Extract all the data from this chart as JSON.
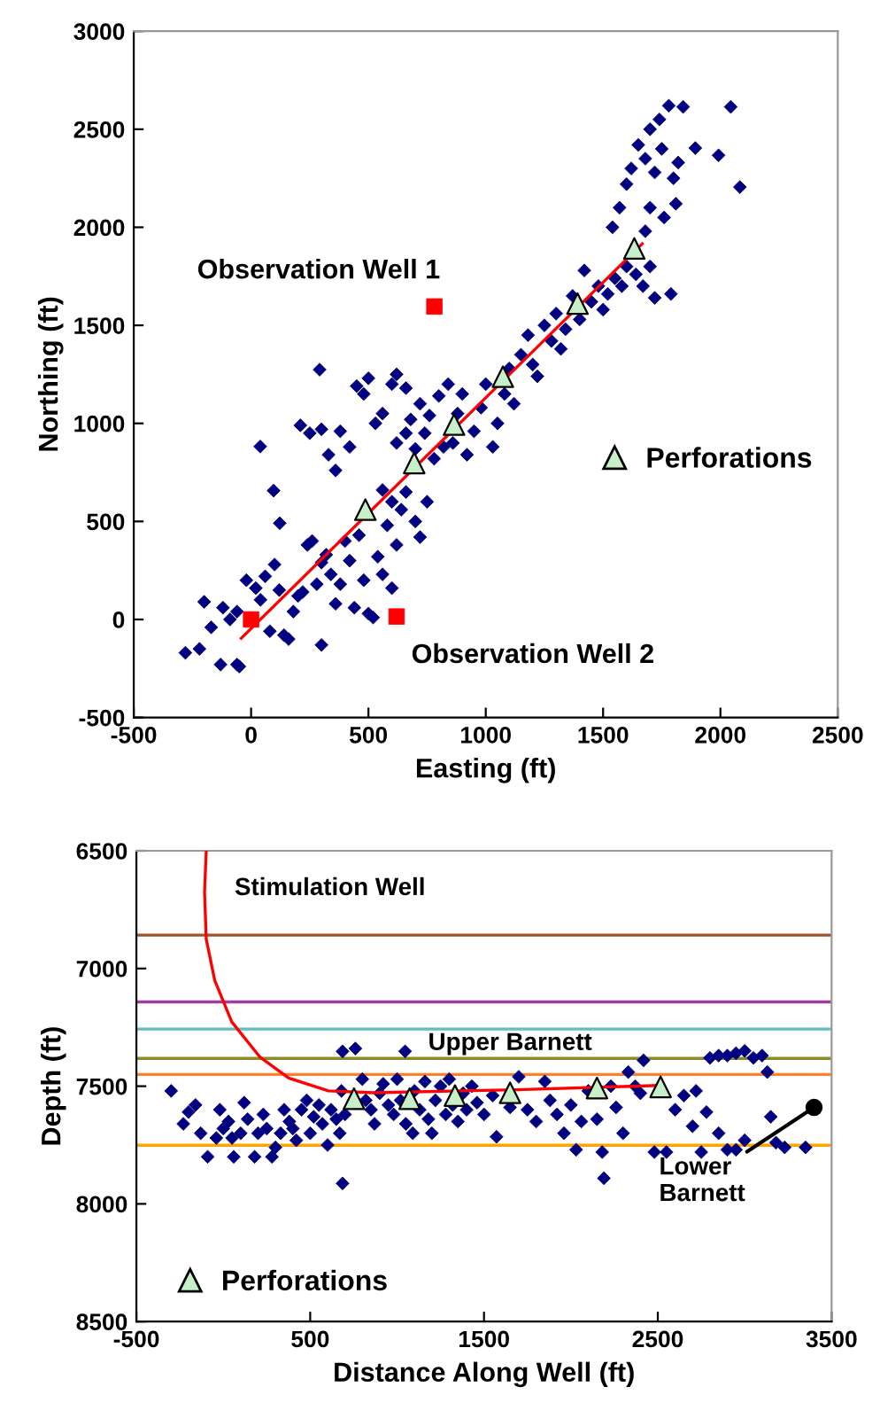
{
  "chart_data": [
    {
      "type": "scatter",
      "xlabel": "Easting (ft)",
      "ylabel": "Northing (ft)",
      "xlim": [
        -500,
        2500
      ],
      "ylim": [
        -500,
        3000
      ],
      "xticks": [
        -500,
        0,
        500,
        1000,
        1500,
        2000,
        2500
      ],
      "yticks": [
        -500,
        0,
        500,
        1000,
        1500,
        2000,
        2500,
        3000
      ],
      "grid": false,
      "legend": "right",
      "annotations": [
        "Observation Well 1",
        {
          "text": "Observation Well 2",
          "x": 620,
          "y": 15
        }
      ],
      "series": [
        {
          "type": "scatter",
          "marker": "diamond",
          "color": "#000080",
          "x": [
            -280,
            -220,
            -130,
            -60,
            -50,
            -200,
            -170,
            -120,
            -90,
            -60,
            -20,
            20,
            40,
            60,
            80,
            100,
            120,
            140,
            160,
            180,
            200,
            220,
            240,
            260,
            280,
            300,
            320,
            340,
            360,
            300,
            380,
            400,
            420,
            440,
            460,
            480,
            500,
            520,
            540,
            560,
            580,
            600,
            620,
            640,
            660,
            700,
            720,
            750,
            560,
            600,
            39,
            96,
            122,
            292,
            210,
            250,
            300,
            330,
            360,
            380,
            420,
            450,
            480,
            500,
            530,
            560,
            600,
            620,
            660,
            620,
            660,
            680,
            700,
            720,
            740,
            760,
            780,
            800,
            820,
            840,
            860,
            880,
            900,
            920,
            950,
            980,
            1000,
            1030,
            1050,
            1080,
            1100,
            1120,
            1150,
            1180,
            1200,
            1220,
            1250,
            1280,
            1300,
            1320,
            1340,
            1370,
            1400,
            1420,
            1450,
            1480,
            1500,
            1520,
            1550,
            1580,
            1600,
            1640,
            1670,
            1700,
            1720,
            1540,
            1570,
            1600,
            1620,
            1650,
            1680,
            1700,
            1720,
            1740,
            1750,
            1780,
            1800,
            1810,
            1760,
            1700,
            1680,
            1820,
            1841,
            1893,
            1992,
            2044,
            2083,
            1789
          ],
          "values": [
            -170,
            -150,
            -230,
            -230,
            -240,
            90,
            -40,
            60,
            0,
            40,
            200,
            160,
            100,
            220,
            -60,
            280,
            150,
            -80,
            -100,
            40,
            120,
            140,
            380,
            400,
            180,
            290,
            330,
            230,
            80,
            -130,
            180,
            400,
            300,
            60,
            430,
            200,
            30,
            10,
            320,
            230,
            480,
            160,
            380,
            560,
            650,
            500,
            420,
            600,
            660,
            600,
            882,
            657,
            491,
            1274,
            990,
            950,
            970,
            840,
            760,
            960,
            880,
            1190,
            1150,
            1230,
            1000,
            1050,
            1200,
            1250,
            1180,
            900,
            950,
            1020,
            870,
            1100,
            950,
            1040,
            820,
            1140,
            880,
            1200,
            900,
            1050,
            1150,
            840,
            960,
            1080,
            1200,
            880,
            1000,
            1150,
            1280,
            1100,
            1350,
            1450,
            1300,
            1240,
            1500,
            1420,
            1560,
            1380,
            1480,
            1650,
            1530,
            1780,
            1620,
            1700,
            1580,
            1660,
            1740,
            1700,
            1800,
            1760,
            1700,
            1800,
            1640,
            2000,
            2100,
            2220,
            2300,
            2420,
            2350,
            2500,
            2280,
            2550,
            2400,
            2620,
            2250,
            2120,
            2050,
            2100,
            1980,
            2330,
            2614,
            2404,
            2367,
            2614,
            2205,
            1660
          ]
        },
        {
          "type": "line",
          "color": "#ff0000",
          "x": [
            -42,
            1667
          ],
          "values": [
            -96,
            1916
          ]
        },
        {
          "type": "scatter",
          "marker": "square",
          "color": "#ff0000",
          "x": [
            0,
            781,
            620
          ],
          "values": [
            0,
            1596,
            15
          ]
        },
        {
          "type": "scatter",
          "marker": "triangle",
          "name": "Perforations",
          "color": "#c8f0c8",
          "x": [
            487,
            695,
            865,
            1073,
            1391,
            1633
          ],
          "values": [
            560,
            798,
            994,
            1238,
            1611,
            1892
          ]
        }
      ]
    },
    {
      "type": "scatter",
      "xlabel": "Distance Along Well (ft)",
      "ylabel": "Depth (ft)",
      "xlim": [
        -500,
        3500
      ],
      "ylim": [
        8500,
        6500
      ],
      "xticks": [
        -500,
        500,
        1500,
        2500,
        3500
      ],
      "yticks": [
        6500,
        7000,
        7500,
        8000,
        8500
      ],
      "grid": false,
      "legend": "bottom left",
      "ref_lines": [
        {
          "axis": "y",
          "value": 6858,
          "color": "#a0522d"
        },
        {
          "axis": "y",
          "value": 7142,
          "color": "#9c3fa0"
        },
        {
          "axis": "y",
          "value": 7257,
          "color": "#5fbfbf"
        },
        {
          "axis": "y",
          "value": 7382,
          "color": "#8b8b2a"
        },
        {
          "axis": "y",
          "value": 7450,
          "color": "#ff7f2a"
        },
        {
          "axis": "y",
          "value": 7751,
          "color": "#ffa500"
        }
      ],
      "annotations": [
        {
          "text": "Stimulation Well",
          "x": -105,
          "y": 6640
        },
        {
          "text": "Upper Barnett",
          "x": 1650,
          "y": 7382
        },
        {
          "text": "Lower\nBarnett",
          "x": 3399,
          "y": 7590
        }
      ],
      "series": [
        {
          "type": "scatter",
          "marker": "diamond",
          "color": "#000080",
          "x": [
            -300,
            -230,
            -200,
            -160,
            -130,
            -90,
            -40,
            -20,
            0,
            30,
            50,
            60,
            100,
            120,
            140,
            180,
            200,
            230,
            250,
            280,
            300,
            330,
            350,
            380,
            400,
            420,
            450,
            480,
            500,
            520,
            550,
            570,
            600,
            620,
            650,
            670,
            680,
            700,
            686,
            686,
            760,
            800,
            820,
            850,
            870,
            900,
            920,
            950,
            980,
            1000,
            1020,
            1050,
            1046,
            1090,
            1100,
            1130,
            1160,
            1180,
            1200,
            1220,
            1250,
            1280,
            1300,
            1320,
            1350,
            1380,
            1400,
            1430,
            1460,
            1500,
            1550,
            1572,
            1650,
            1700,
            1750,
            1800,
            1850,
            1880,
            1920,
            1960,
            2000,
            2030,
            2060,
            2100,
            2150,
            2180,
            2190,
            2230,
            2260,
            2300,
            2330,
            2370,
            2400,
            2418,
            2480,
            2550,
            2600,
            2650,
            2700,
            2720,
            2750,
            2780,
            2800,
            2850,
            2900,
            2950,
            3000,
            2850,
            2900,
            2950,
            3050,
            3100,
            3130,
            3000,
            3150,
            3180,
            3230,
            3350
          ],
          "values": [
            7520,
            7660,
            7610,
            7580,
            7700,
            7800,
            7720,
            7600,
            7680,
            7650,
            7720,
            7800,
            7700,
            7570,
            7640,
            7800,
            7700,
            7620,
            7680,
            7800,
            7760,
            7700,
            7600,
            7650,
            7680,
            7730,
            7600,
            7560,
            7700,
            7630,
            7580,
            7660,
            7750,
            7600,
            7640,
            7700,
            7520,
            7620,
            7913,
            7352,
            7340,
            7470,
            7560,
            7600,
            7660,
            7530,
            7490,
            7580,
            7620,
            7470,
            7560,
            7660,
            7352,
            7700,
            7520,
            7600,
            7480,
            7640,
            7700,
            7560,
            7500,
            7620,
            7470,
            7580,
            7650,
            7530,
            7600,
            7500,
            7570,
            7620,
            7540,
            7715,
            7590,
            7460,
            7600,
            7650,
            7480,
            7560,
            7620,
            7700,
            7580,
            7770,
            7650,
            7520,
            7640,
            7780,
            7891,
            7500,
            7590,
            7700,
            7440,
            7500,
            7530,
            7390,
            7780,
            7780,
            7600,
            7540,
            7670,
            7520,
            7780,
            7610,
            7380,
            7370,
            7370,
            7360,
            7350,
            7700,
            7770,
            7770,
            7380,
            7370,
            7440,
            7730,
            7630,
            7740,
            7760,
            7760
          ]
        },
        {
          "type": "line",
          "color": "#ff0000",
          "x": [
            -98,
            -108,
            -98,
            -49,
            49,
            212,
            376,
            605,
            866,
            1683,
            2500
          ],
          "values": [
            6500,
            6675,
            6876,
            7051,
            7227,
            7377,
            7465,
            7520,
            7528,
            7515,
            7497
          ]
        },
        {
          "type": "scatter",
          "marker": "triangle",
          "name": "Perforations",
          "color": "#c8f0c8",
          "x": [
            752,
            1072,
            1333,
            1650,
            2150,
            2516
          ],
          "values": [
            7553,
            7553,
            7540,
            7528,
            7508,
            7503
          ]
        }
      ]
    }
  ]
}
